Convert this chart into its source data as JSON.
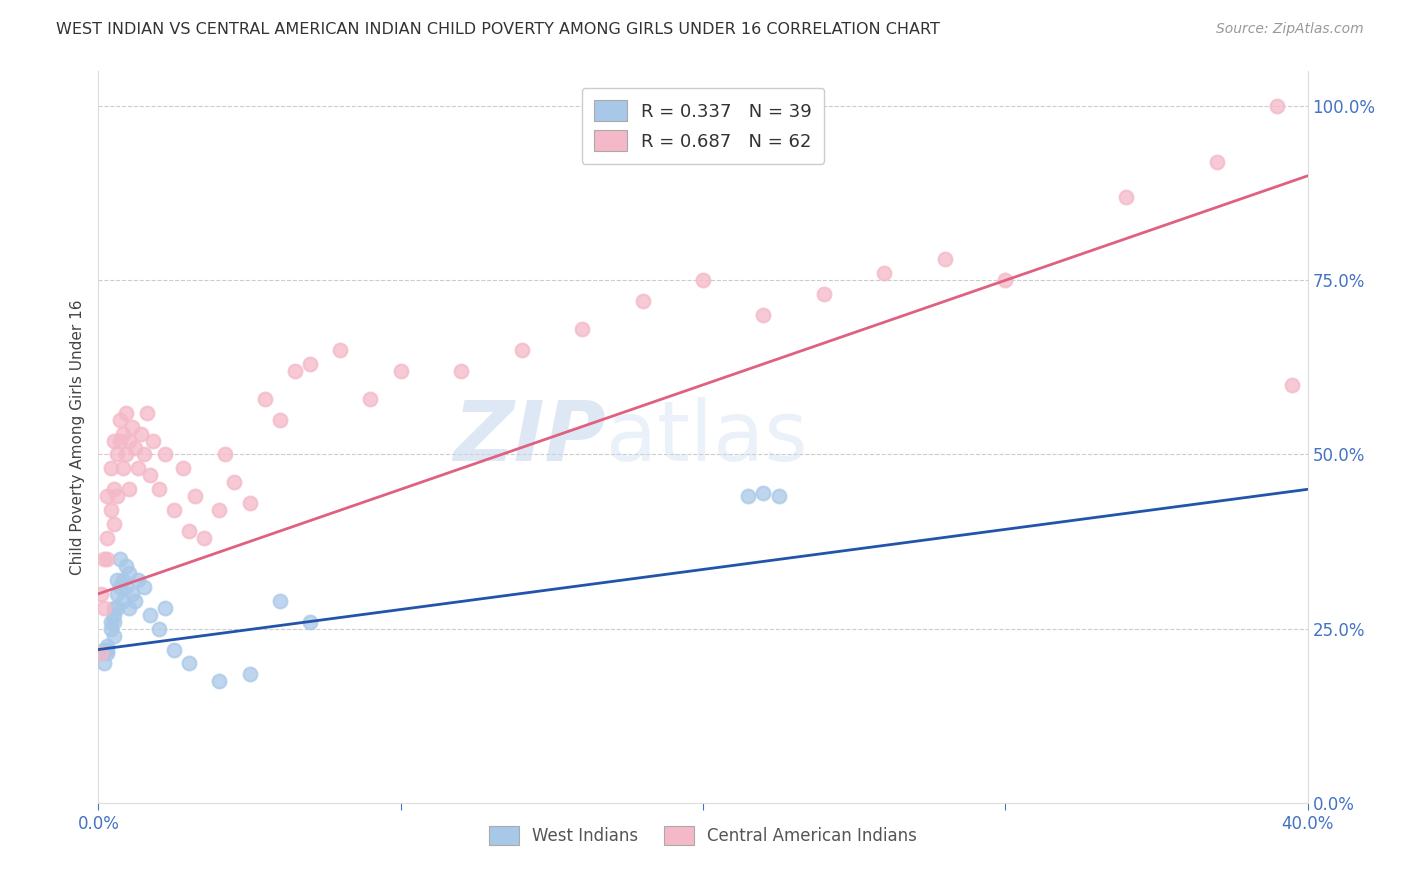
{
  "title": "WEST INDIAN VS CENTRAL AMERICAN INDIAN CHILD POVERTY AMONG GIRLS UNDER 16 CORRELATION CHART",
  "source": "Source: ZipAtlas.com",
  "ylabel": "Child Poverty Among Girls Under 16",
  "watermark_zip": "ZIP",
  "watermark_atlas": "atlas",
  "legend1_label": "R = 0.337   N = 39",
  "legend2_label": "R = 0.687   N = 62",
  "legend_bottom1": "West Indians",
  "legend_bottom2": "Central American Indians",
  "blue_scatter_color": "#a8c8e8",
  "pink_scatter_color": "#f4b8c8",
  "blue_line_color": "#2255aa",
  "pink_line_color": "#e06080",
  "blue_line_y0": 0.22,
  "blue_line_y1": 0.45,
  "pink_line_y0": 0.3,
  "pink_line_y1": 0.9,
  "west_indian_x": [
    0.001,
    0.002,
    0.002,
    0.003,
    0.003,
    0.003,
    0.004,
    0.004,
    0.005,
    0.005,
    0.005,
    0.005,
    0.006,
    0.006,
    0.006,
    0.007,
    0.007,
    0.008,
    0.008,
    0.009,
    0.009,
    0.01,
    0.01,
    0.011,
    0.012,
    0.013,
    0.015,
    0.017,
    0.02,
    0.022,
    0.025,
    0.03,
    0.04,
    0.05,
    0.06,
    0.07,
    0.215,
    0.22,
    0.225
  ],
  "west_indian_y": [
    0.215,
    0.2,
    0.22,
    0.215,
    0.225,
    0.22,
    0.25,
    0.26,
    0.27,
    0.24,
    0.28,
    0.26,
    0.3,
    0.28,
    0.32,
    0.31,
    0.35,
    0.32,
    0.29,
    0.34,
    0.31,
    0.33,
    0.28,
    0.3,
    0.29,
    0.32,
    0.31,
    0.27,
    0.25,
    0.28,
    0.22,
    0.2,
    0.175,
    0.185,
    0.29,
    0.26,
    0.44,
    0.445,
    0.44
  ],
  "central_american_x": [
    0.001,
    0.001,
    0.002,
    0.002,
    0.003,
    0.003,
    0.003,
    0.004,
    0.004,
    0.005,
    0.005,
    0.005,
    0.006,
    0.006,
    0.007,
    0.007,
    0.008,
    0.008,
    0.009,
    0.009,
    0.01,
    0.01,
    0.011,
    0.012,
    0.013,
    0.014,
    0.015,
    0.016,
    0.017,
    0.018,
    0.02,
    0.022,
    0.025,
    0.028,
    0.03,
    0.032,
    0.035,
    0.04,
    0.042,
    0.045,
    0.05,
    0.055,
    0.06,
    0.065,
    0.07,
    0.08,
    0.09,
    0.1,
    0.12,
    0.14,
    0.16,
    0.18,
    0.2,
    0.22,
    0.24,
    0.26,
    0.28,
    0.3,
    0.34,
    0.37,
    0.39,
    0.395
  ],
  "central_american_y": [
    0.215,
    0.3,
    0.28,
    0.35,
    0.35,
    0.38,
    0.44,
    0.42,
    0.48,
    0.45,
    0.52,
    0.4,
    0.5,
    0.44,
    0.52,
    0.55,
    0.53,
    0.48,
    0.56,
    0.5,
    0.52,
    0.45,
    0.54,
    0.51,
    0.48,
    0.53,
    0.5,
    0.56,
    0.47,
    0.52,
    0.45,
    0.5,
    0.42,
    0.48,
    0.39,
    0.44,
    0.38,
    0.42,
    0.5,
    0.46,
    0.43,
    0.58,
    0.55,
    0.62,
    0.63,
    0.65,
    0.58,
    0.62,
    0.62,
    0.65,
    0.68,
    0.72,
    0.75,
    0.7,
    0.73,
    0.76,
    0.78,
    0.75,
    0.87,
    0.92,
    1.0,
    0.6
  ],
  "xlim": [
    0,
    0.4
  ],
  "ylim": [
    0,
    1.05
  ],
  "xtick_positions": [
    0,
    0.1,
    0.2,
    0.3,
    0.4
  ],
  "ytick_positions": [
    0,
    0.25,
    0.5,
    0.75,
    1.0
  ],
  "right_ytick_labels": [
    "0.0%",
    "25.0%",
    "50.0%",
    "75.0%",
    "100.0%"
  ],
  "right_yaxis_color": "#4472c4"
}
